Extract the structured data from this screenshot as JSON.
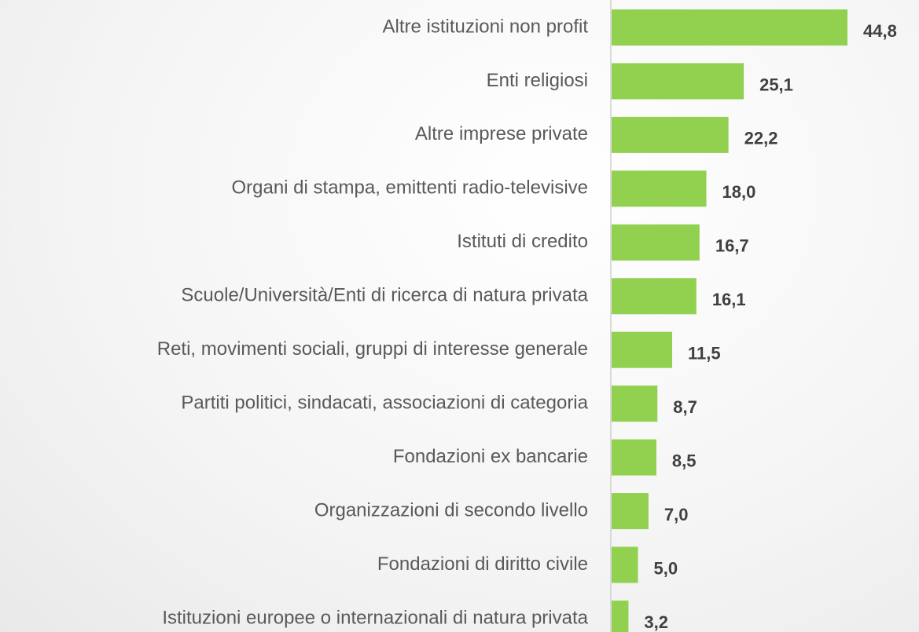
{
  "chart_data": {
    "type": "bar",
    "orientation": "horizontal",
    "categories": [
      "Altre istituzioni non profit",
      "Enti religiosi",
      "Altre imprese private",
      "Organi di stampa, emittenti radio-televisive",
      "Istituti di credito",
      "Scuole/Università/Enti di ricerca di natura privata",
      "Reti, movimenti sociali, gruppi di interesse generale",
      "Partiti politici, sindacati, associazioni di categoria",
      "Fondazioni ex bancarie",
      "Organizzazioni di secondo livello",
      "Fondazioni di diritto civile",
      "Istituzioni europee o internazionali di natura privata"
    ],
    "values": [
      44.8,
      25.1,
      22.2,
      18.0,
      16.7,
      16.1,
      11.5,
      8.7,
      8.5,
      7.0,
      5.0,
      3.2
    ],
    "value_labels": [
      "44,8",
      "25,1",
      "22,2",
      "18,0",
      "16,7",
      "16,1",
      "11,5",
      "8,7",
      "8,5",
      "7,0",
      "5,0",
      "3,2"
    ],
    "color": "#92d050"
  }
}
